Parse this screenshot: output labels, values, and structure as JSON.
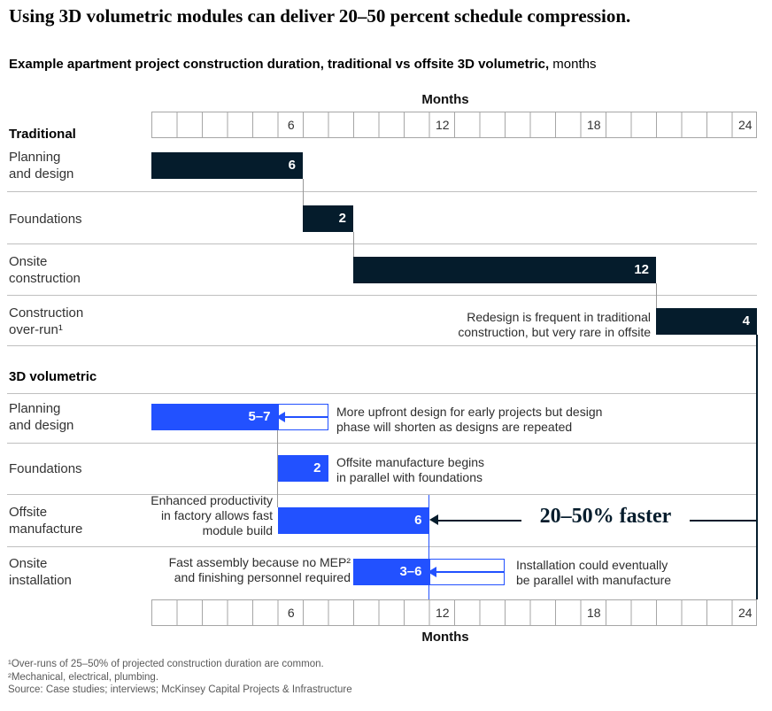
{
  "title": "Using 3D volumetric modules can deliver 20–50 percent schedule compression.",
  "subtitle": {
    "text": "Example apartment project construction duration, traditional vs offsite 3D volumetric,",
    "unit": " months"
  },
  "callout": "20–50% faster",
  "colors": {
    "bar_dark": "#051c2c",
    "bar_blue": "#2251ff",
    "grid": "#a6a6a6"
  },
  "chart_data": {
    "type": "gantt",
    "unit": "months",
    "axis": {
      "label": "Months",
      "ticks": [
        6,
        12,
        18,
        24
      ],
      "max": 24
    },
    "groups": [
      {
        "name": "Traditional",
        "color": "#051c2c",
        "rows": [
          {
            "label": [
              "Planning",
              "and design"
            ],
            "start": 0,
            "end": 6,
            "value": "6"
          },
          {
            "label": "Foundations",
            "start": 6,
            "end": 8,
            "value": "2"
          },
          {
            "label": [
              "Onsite",
              "construction"
            ],
            "start": 8,
            "end": 20,
            "value": "12"
          },
          {
            "label": [
              "Construction",
              "over-run¹"
            ],
            "start": 20,
            "end": 24,
            "value": "4",
            "note": [
              "Redesign is frequent in traditional",
              "construction, but very rare in offsite"
            ]
          }
        ]
      },
      {
        "name": "3D volumetric",
        "color": "#2251ff",
        "rows": [
          {
            "label": [
              "Planning",
              "and design"
            ],
            "start": 0,
            "end": 5,
            "range_end": 7,
            "value": "5–7",
            "note": [
              "More upfront design for early projects but design",
              "phase will shorten as designs are repeated"
            ]
          },
          {
            "label": "Foundations",
            "start": 5,
            "end": 7,
            "value": "2",
            "note": [
              "Offsite manufacture begins",
              "in parallel with foundations"
            ]
          },
          {
            "label": [
              "Offsite",
              "manufacture"
            ],
            "start": 5,
            "end": 11,
            "value": "6",
            "note_left": [
              "Enhanced productivity",
              "in factory allows fast",
              "module build"
            ],
            "callout": "20–50% faster"
          },
          {
            "label": [
              "Onsite",
              "installation"
            ],
            "start": 8,
            "end": 11,
            "range_end": 14,
            "value": "3–6",
            "note_left": [
              "Fast assembly because no MEP²",
              "and finishing personnel required"
            ],
            "note": [
              "Installation could eventually",
              "be parallel with manufacture"
            ]
          }
        ]
      }
    ]
  },
  "footnotes": [
    "¹Over-runs of 25–50% of projected construction duration are common.",
    "²Mechanical, electrical, plumbing.",
    "Source: Case studies; interviews; McKinsey Capital Projects & Infrastructure"
  ]
}
